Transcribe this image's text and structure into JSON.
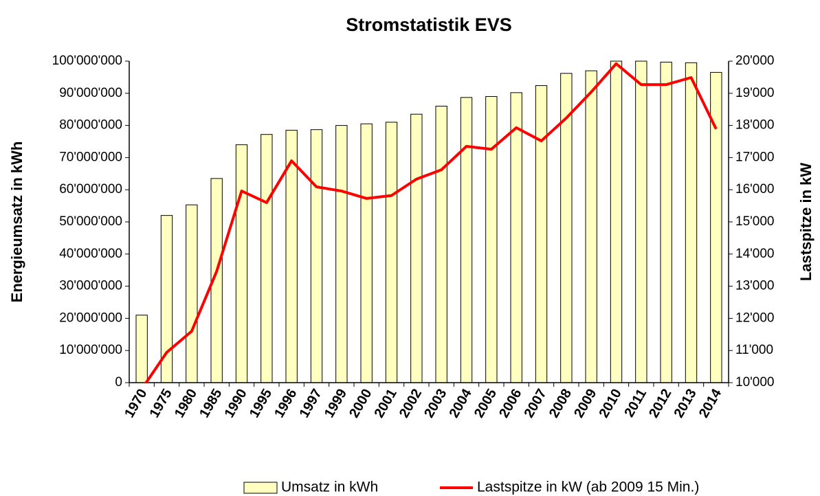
{
  "chart_data": {
    "type": "bar_line",
    "title": "Stromstatistik EVS",
    "y_label": "Energieumsatz in kWh",
    "y2_label": "Lastspitze in kW",
    "categories": [
      "1970",
      "1975",
      "1980",
      "1985",
      "1990",
      "1995",
      "1996",
      "1997",
      "1999",
      "2000",
      "2001",
      "2002",
      "2003",
      "2004",
      "2005",
      "2006",
      "2007",
      "2008",
      "2009",
      "2010",
      "2011",
      "2012",
      "2013",
      "2014"
    ],
    "series": [
      {
        "name": "Umsatz in kWh",
        "type": "bar",
        "color": "#ffffc0",
        "axis": "y",
        "values": [
          21000000,
          52000000,
          55300000,
          63500000,
          74000000,
          77200000,
          78500000,
          78700000,
          80000000,
          80500000,
          81000000,
          83500000,
          86000000,
          88700000,
          89000000,
          90200000,
          92400000,
          96200000,
          97000000,
          100000000,
          100000000,
          99700000,
          99500000,
          96500000
        ]
      },
      {
        "name": "Lastspitze in kW (ab 2009 15 Min.)",
        "type": "line",
        "color": "#ff0000",
        "axis": "y2",
        "values": [
          9800,
          10940,
          11600,
          13460,
          15960,
          15600,
          16900,
          16090,
          15960,
          15730,
          15820,
          16330,
          16620,
          17350,
          17260,
          17930,
          17520,
          18230,
          19040,
          19920,
          19270,
          19270,
          19490,
          17890
        ]
      }
    ],
    "ylim": [
      0,
      100000000
    ],
    "yticks": [
      0,
      {
        "value": 10000000,
        "label": "10'000'000"
      },
      {
        "value": 20000000,
        "label": "20'000'000"
      },
      {
        "value": 30000000,
        "label": "30'000'000"
      },
      {
        "value": 40000000,
        "label": "40'000'000"
      },
      {
        "value": 50000000,
        "label": "50'000'000"
      },
      {
        "value": 60000000,
        "label": "60'000'000"
      },
      {
        "value": 70000000,
        "label": "70'000'000"
      },
      {
        "value": 80000000,
        "label": "80'000'000"
      },
      {
        "value": 90000000,
        "label": "90'000'000"
      },
      {
        "value": 100000000,
        "label": "100'000'000"
      }
    ],
    "y2lim": [
      10000,
      20000
    ],
    "y2ticks": [
      {
        "value": 10000,
        "label": "10'000"
      },
      {
        "value": 11000,
        "label": "11'000"
      },
      {
        "value": 12000,
        "label": "12'000"
      },
      {
        "value": 13000,
        "label": "13'000"
      },
      {
        "value": 14000,
        "label": "14'000"
      },
      {
        "value": 15000,
        "label": "15'000"
      },
      {
        "value": 16000,
        "label": "16'000"
      },
      {
        "value": 17000,
        "label": "17'000"
      },
      {
        "value": 18000,
        "label": "18'000"
      },
      {
        "value": 19000,
        "label": "19'000"
      },
      {
        "value": 20000,
        "label": "20'000"
      }
    ],
    "legend": "bottom"
  }
}
